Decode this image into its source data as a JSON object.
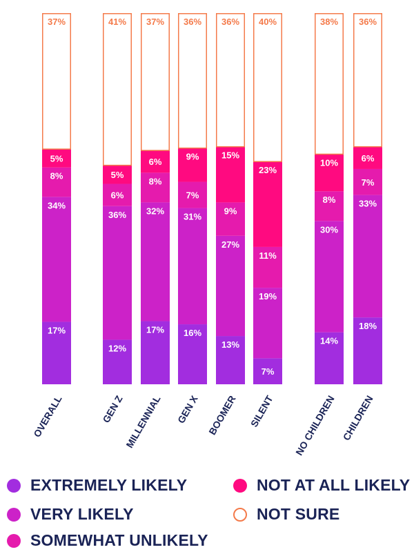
{
  "chart_data": {
    "type": "bar",
    "stacked": true,
    "normalized_percent": true,
    "categories": [
      "OVERALL",
      "GEN Z",
      "MILLENNIAL",
      "GEN X",
      "BOOMER",
      "SILENT",
      "NO CHILDREN",
      "CHILDREN"
    ],
    "series": [
      {
        "name": "EXTREMELY LIKELY",
        "color": "#a22ddf",
        "values": [
          17,
          12,
          17,
          16,
          13,
          7,
          14,
          18
        ]
      },
      {
        "name": "VERY LIKELY",
        "color": "#cc22c8",
        "values": [
          34,
          36,
          32,
          31,
          27,
          19,
          30,
          33
        ]
      },
      {
        "name": "SOMEWHAT UNLIKELY",
        "color": "#e51bad",
        "values": [
          8,
          6,
          8,
          7,
          9,
          11,
          8,
          7
        ]
      },
      {
        "name": "NOT AT ALL LIKELY",
        "color": "#ff0a80",
        "values": [
          5,
          5,
          6,
          9,
          15,
          23,
          10,
          6
        ]
      },
      {
        "name": "NOT SURE",
        "color": "#f47a4a",
        "outline": true,
        "values": [
          37,
          41,
          37,
          36,
          36,
          40,
          38,
          36
        ]
      }
    ],
    "title": "",
    "xlabel": "",
    "ylabel": "",
    "ylim": [
      0,
      100
    ],
    "grid": false,
    "legend_position": "bottom",
    "label_suffix": "%"
  },
  "legend": {
    "items": [
      {
        "label": "EXTREMELY LIKELY",
        "color": "#a22ddf",
        "style": "filled"
      },
      {
        "label": "NOT AT ALL LIKELY",
        "color": "#ff0a80",
        "style": "filled"
      },
      {
        "label": "VERY LIKELY",
        "color": "#cc22c8",
        "style": "filled"
      },
      {
        "label": "NOT SURE",
        "color": "#f47a4a",
        "style": "outline"
      },
      {
        "label": "SOMEWHAT UNLIKELY",
        "color": "#e51bad",
        "style": "filled"
      }
    ]
  },
  "colors": {
    "legend_text": "#1a2356",
    "category_text": "#1a2356",
    "bar_label_text": "#ffffff",
    "outline_label_text": "#f47a4a",
    "background": "#ffffff"
  }
}
